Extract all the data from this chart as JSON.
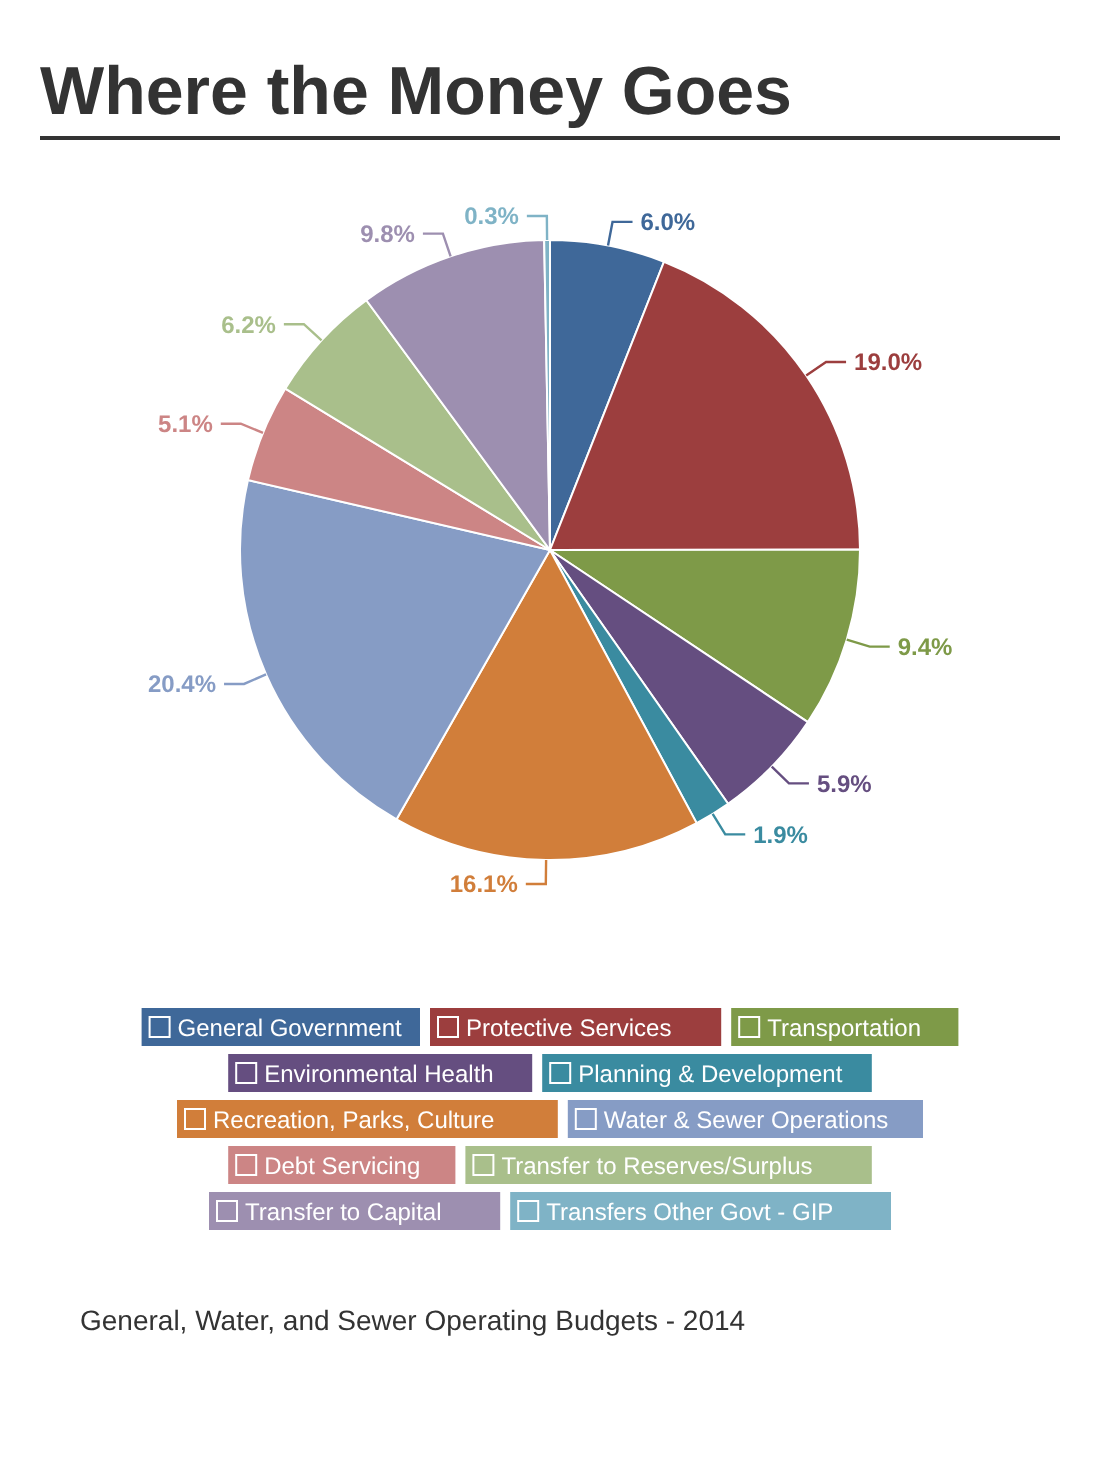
{
  "chart_data": {
    "type": "pie",
    "title": "Where the Money Goes",
    "categories": [
      "General Government",
      "Protective Services",
      "Transportation",
      "Environmental Health",
      "Planning & Development",
      "Recreation, Parks, Culture",
      "Water & Sewer Operations",
      "Debt Servicing",
      "Transfer to Reserves/Surplus",
      "Transfer to Capital",
      "Transfers Other Govt - GIP"
    ],
    "values": [
      6.0,
      19.0,
      9.4,
      5.9,
      1.9,
      16.1,
      20.4,
      5.1,
      6.2,
      9.8,
      0.3
    ],
    "value_labels": [
      "6.0%",
      "19.0%",
      "9.4%",
      "5.9%",
      "1.9%",
      "16.1%",
      "20.4%",
      "5.1%",
      "6.2%",
      "9.8%",
      "0.3%"
    ],
    "colors": [
      "#3f6899",
      "#9c3e3e",
      "#7e9a48",
      "#654e80",
      "#3a8ba0",
      "#d17e3a",
      "#869cc5",
      "#cc8585",
      "#a9bf8b",
      "#9d8fb0",
      "#7fb3c6"
    ],
    "legend": "bottom",
    "annotations": [
      "General, Water, and Sewer Operating Budgets - 2014"
    ]
  }
}
